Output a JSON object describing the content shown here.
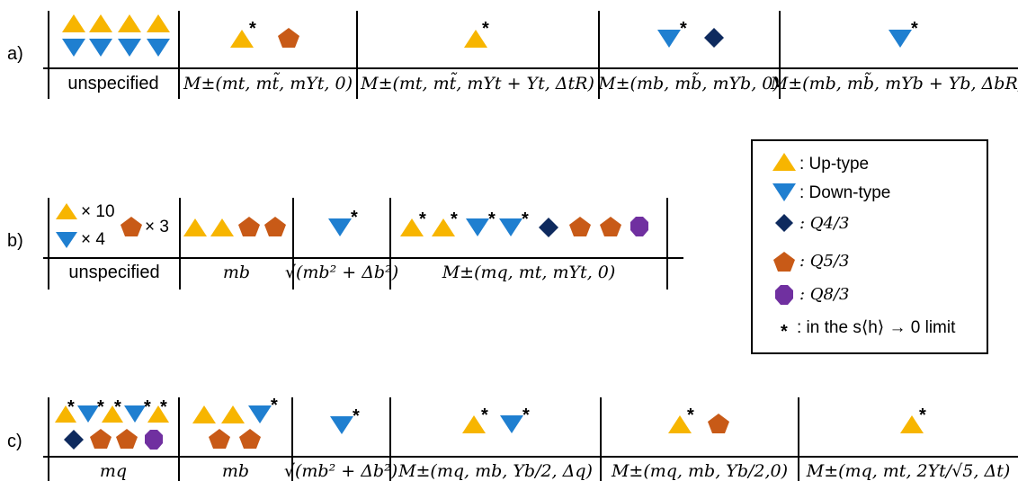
{
  "colors": {
    "up_type": "#f7b500",
    "down_type": "#1f7fd0",
    "q43": "#0e2a5e",
    "q53": "#c85a17",
    "q83": "#7030a0"
  },
  "rows": [
    {
      "label": "a)",
      "cells": [
        {
          "header": "unspecified",
          "header_style": "text",
          "glyphs": [
            "up",
            "up",
            "up",
            "up",
            "down",
            "down",
            "down",
            "down"
          ]
        },
        {
          "header": "M±(mt, mt̃, mYt, 0)",
          "header_style": "math",
          "glyphs": [
            "up*",
            "q53"
          ]
        },
        {
          "header": "M±(mt, mt̃, mYt + Yt, ΔtR)",
          "header_style": "math",
          "glyphs": [
            "up*"
          ]
        },
        {
          "header": "M±(mb, mb̃, mYb, 0)",
          "header_style": "math",
          "glyphs": [
            "down*",
            "q43"
          ]
        },
        {
          "header": "M±(mb, mb̃, mYb + Yb, ΔbR)",
          "header_style": "math",
          "glyphs": [
            "down*"
          ]
        }
      ]
    },
    {
      "label": "b)",
      "cells": [
        {
          "header": "unspecified",
          "header_style": "text",
          "glyphs": [
            "up",
            "down",
            "q53"
          ],
          "counts": [
            "× 10",
            "× 4",
            "× 3"
          ]
        },
        {
          "header": "mb",
          "header_style": "math",
          "glyphs": [
            "up",
            "up",
            "q53",
            "q53"
          ]
        },
        {
          "header": "√(mb² + Δb²)",
          "header_style": "math",
          "glyphs": [
            "down*"
          ]
        },
        {
          "header": "M±(mq, mt, mYt, 0)",
          "header_style": "math",
          "glyphs": [
            "up*",
            "up*",
            "down*",
            "down*",
            "q43",
            "q53",
            "q53",
            "q83"
          ]
        }
      ]
    },
    {
      "label": "c)",
      "cells": [
        {
          "header": "mq",
          "header_style": "math",
          "glyphs": [
            "up*",
            "down*",
            "up*",
            "down*",
            "up*",
            "q43",
            "q53",
            "q53",
            "q83"
          ]
        },
        {
          "header": "mb",
          "header_style": "math",
          "glyphs": [
            "up",
            "up",
            "down*",
            "q53",
            "q53"
          ]
        },
        {
          "header": "√(mb² + Δb²)",
          "header_style": "math",
          "glyphs": [
            "down*"
          ]
        },
        {
          "header": "M±(mq, mb, Yb/2, Δq)",
          "header_style": "math",
          "glyphs": [
            "up*",
            "down*"
          ]
        },
        {
          "header": "M±(mq, mb, Yb/2,0)",
          "header_style": "math",
          "glyphs": [
            "up*",
            "q53"
          ]
        },
        {
          "header": "M±(mq, mt, 2Yt/√5, Δt)",
          "header_style": "math",
          "glyphs": [
            "up*"
          ]
        }
      ]
    }
  ],
  "legend": {
    "items": [
      {
        "glyph": "up",
        "label": ": Up-type"
      },
      {
        "glyph": "down",
        "label": ": Down-type"
      },
      {
        "glyph": "q43",
        "label": ": Q4/3"
      },
      {
        "glyph": "q53",
        "label": ": Q5/3"
      },
      {
        "glyph": "q83",
        "label": ": Q8/3"
      },
      {
        "glyph": "star",
        "label": ": in the s⟨h⟩ → 0 limit"
      }
    ]
  }
}
